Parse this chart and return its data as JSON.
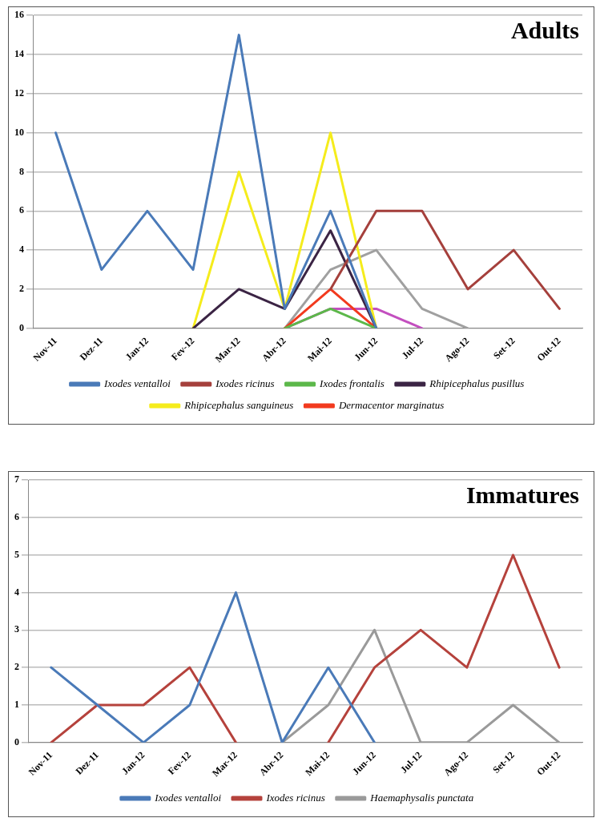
{
  "chart_data": [
    {
      "type": "line",
      "title": "Adults",
      "categories": [
        "Nov-11",
        "Dez-11",
        "Jan-12",
        "Fev-12",
        "Mar-12",
        "Abr-12",
        "Mai-12",
        "Jun-12",
        "Jul-12",
        "Ago-12",
        "Set-12",
        "Out-12"
      ],
      "series": [
        {
          "name": "Ixodes ventalloi",
          "color": "#4a7ab8",
          "values": [
            10,
            3,
            6,
            3,
            15,
            1,
            6,
            0,
            null,
            null,
            null,
            null
          ]
        },
        {
          "name": "Ixodes ricinus",
          "color": "#a5403c",
          "values": [
            null,
            null,
            null,
            null,
            null,
            null,
            2,
            6,
            6,
            2,
            4,
            1
          ]
        },
        {
          "name": "Ixodes frontalis",
          "color": "#5cb84a",
          "values": [
            null,
            null,
            null,
            null,
            null,
            0,
            1,
            0,
            null,
            null,
            null,
            null
          ]
        },
        {
          "name": "Rhipicephalus pusillus",
          "color": "#3b2444",
          "values": [
            null,
            null,
            null,
            0,
            2,
            1,
            5,
            0,
            null,
            null,
            null,
            null
          ]
        },
        {
          "name": "Rhipicephalus sanguineus",
          "color": "#f5ec1c",
          "values": [
            null,
            null,
            null,
            0,
            8,
            1,
            10,
            0,
            null,
            null,
            null,
            null
          ]
        },
        {
          "name": "Dermacentor marginatus",
          "color": "#f23a1e",
          "values": [
            null,
            null,
            null,
            null,
            null,
            0,
            2,
            0,
            null,
            null,
            null,
            null
          ]
        },
        {
          "color": "#c34fbf",
          "values": [
            null,
            null,
            null,
            null,
            null,
            0,
            1,
            1,
            0,
            null,
            null,
            null
          ]
        },
        {
          "color": "#a0a0a0",
          "values": [
            null,
            null,
            null,
            null,
            null,
            0,
            3,
            4,
            1,
            0,
            null,
            null
          ]
        }
      ],
      "ylim": [
        0,
        16
      ],
      "yticks": [
        0,
        2,
        4,
        6,
        8,
        10,
        12,
        14,
        16
      ],
      "grid": "y",
      "legend": "bottom",
      "marker": "none",
      "line_style": "solid"
    },
    {
      "type": "line",
      "title": "Immatures",
      "categories": [
        "Nov-11",
        "Dez-11",
        "Jan-12",
        "Fev-12",
        "Mar-12",
        "Abr-12",
        "Mai-12",
        "Jun-12",
        "Jul-12",
        "Ago-12",
        "Set-12",
        "Out-12"
      ],
      "series": [
        {
          "name": "Ixodes ventalloi",
          "color": "#4a7ab8",
          "values": [
            2,
            1,
            0,
            1,
            4,
            0,
            2,
            0,
            null,
            null,
            null,
            null
          ]
        },
        {
          "name": "Ixodes ricinus",
          "color": "#b5423c",
          "values": [
            0,
            1,
            1,
            2,
            0,
            null,
            0,
            2,
            3,
            2,
            5,
            2
          ]
        },
        {
          "name": "Haemaphysalis punctata",
          "color": "#9a9a9a",
          "values": [
            null,
            null,
            null,
            null,
            null,
            0,
            1,
            3,
            0,
            0,
            1,
            0
          ]
        }
      ],
      "ylim": [
        0,
        7
      ],
      "yticks": [
        0,
        1,
        2,
        3,
        4,
        5,
        6,
        7
      ],
      "grid": "y",
      "legend": "bottom",
      "marker": "none",
      "line_style": "solid"
    }
  ]
}
